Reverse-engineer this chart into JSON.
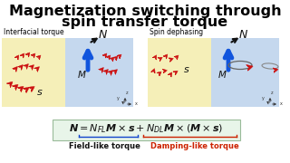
{
  "title_line1": "Magnetization switching through",
  "title_line2": "spin transfer torque",
  "title_fontsize": 11.5,
  "title_color": "#000000",
  "bg_color": "#ffffff",
  "label_interfacial": "Interfacial torque",
  "label_spin": "Spin dephasing",
  "field_like_label": "Field-like torque",
  "damping_like_label": "Damping-like torque",
  "field_like_color": "#1144cc",
  "damping_like_color": "#cc2200",
  "box_facecolor": "#e8f5e9",
  "box_edgecolor": "#99bb99",
  "panel_yellow": "#f5efb8",
  "panel_blue": "#c5d8ee",
  "sub_label_fontsize": 5.5,
  "formula_fontsize": 8.0
}
